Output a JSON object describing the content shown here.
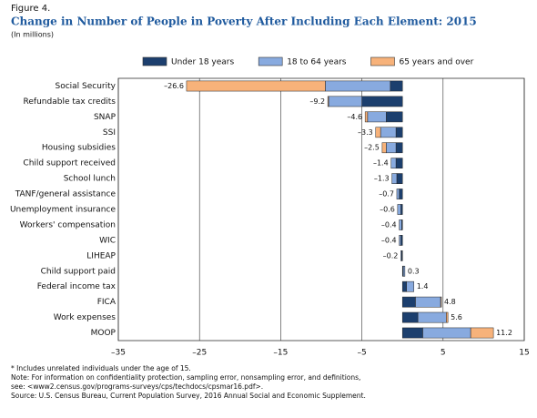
{
  "chart_data": {
    "type": "bar",
    "orientation": "horizontal",
    "stacked": true,
    "figure_label": "Figure 4.",
    "title": "Change in Number of People in Poverty After Including Each Element: 2015",
    "subtitle": "(In millions)",
    "categories": [
      "Social Security",
      "Refundable tax credits",
      "SNAP",
      "SSI",
      "Housing subsidies",
      "Child support received",
      "School lunch",
      "TANF/general assistance",
      "Unemployment insurance",
      "Workers' compensation",
      "WIC",
      "LIHEAP",
      "Child support paid",
      "Federal income tax",
      "FICA",
      "Work expenses",
      "MOOP"
    ],
    "series": [
      {
        "name": "Under 18 years",
        "color": "#1c3f6e",
        "values": [
          -1.5,
          -5.0,
          -2.0,
          -0.8,
          -0.8,
          -0.8,
          -0.7,
          -0.4,
          -0.2,
          -0.1,
          -0.2,
          -0.1,
          0.1,
          0.5,
          1.6,
          1.9,
          2.5
        ]
      },
      {
        "name": "18 to 64 years",
        "color": "#88aadf",
        "values": [
          -8.0,
          -4.1,
          -2.3,
          -1.9,
          -1.2,
          -0.6,
          -0.6,
          -0.3,
          -0.4,
          -0.3,
          -0.2,
          -0.1,
          0.2,
          0.9,
          3.1,
          3.5,
          5.9
        ]
      },
      {
        "name": "65 years and over",
        "color": "#f7b27a",
        "values": [
          -17.1,
          -0.1,
          -0.3,
          -0.6,
          -0.5,
          0,
          0,
          0,
          0,
          0,
          0,
          0,
          0,
          0,
          0.1,
          0.2,
          2.8
        ]
      }
    ],
    "totals": [
      -26.6,
      -9.2,
      -4.6,
      -3.3,
      -2.5,
      -1.4,
      -1.3,
      -0.7,
      -0.6,
      -0.4,
      -0.4,
      -0.2,
      0.3,
      1.4,
      4.8,
      5.6,
      11.2
    ],
    "total_labels": [
      "–26.6",
      "–9.2",
      "–4.6",
      "–3.3",
      "–2.5",
      "–1.4",
      "–1.3",
      "–0.7",
      "–0.6",
      "–0.4",
      "–0.4",
      "–0.2",
      "0.3",
      "1.4",
      "4.8",
      "5.6",
      "11.2"
    ],
    "xlim": [
      -35,
      15
    ],
    "xticks": [
      {
        "value": -35,
        "label": "–35"
      },
      {
        "value": -25,
        "label": "–25"
      },
      {
        "value": -15,
        "label": "–15"
      },
      {
        "value": -5,
        "label": "–5"
      },
      5,
      15
    ],
    "grid": true,
    "legend": "top",
    "notes": [
      "* Includes unrelated individuals under the age of 15.",
      "Note: For information on confidentiality protection, sampling error, nonsampling error, and definitions,",
      "see: <www2.census.gov/programs-surveys/cps/techdocs/cpsmar16.pdf>.",
      "Source: U.S. Census Bureau, Current Population Survey, 2016 Annual Social and Economic Supplement."
    ]
  }
}
